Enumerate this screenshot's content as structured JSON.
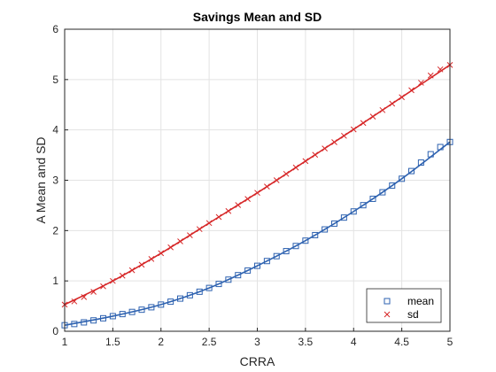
{
  "chart_data": {
    "type": "line",
    "title": "Savings Mean and SD",
    "xlabel": "CRRA",
    "ylabel": "A Mean and SD",
    "xlim": [
      1,
      5
    ],
    "ylim": [
      0,
      6
    ],
    "xticks": [
      1,
      1.5,
      2,
      2.5,
      3,
      3.5,
      4,
      4.5,
      5
    ],
    "yticks": [
      0,
      1,
      2,
      3,
      4,
      5,
      6
    ],
    "grid": true,
    "legend_position": "bottom-right",
    "series": [
      {
        "name": "mean",
        "color": "#2e62b0",
        "marker": "square",
        "x": [
          1.0,
          1.5,
          2.0,
          2.5,
          3.0,
          3.5,
          4.0,
          4.5,
          5.0
        ],
        "y": [
          0.12,
          0.3,
          0.53,
          0.86,
          1.3,
          1.8,
          2.38,
          3.03,
          3.76
        ]
      },
      {
        "name": "sd",
        "color": "#d62728",
        "marker": "x",
        "x": [
          1.0,
          1.5,
          2.0,
          2.5,
          3.0,
          3.5,
          4.0,
          4.5,
          5.0
        ],
        "y": [
          0.53,
          1.0,
          1.55,
          2.15,
          2.75,
          3.38,
          4.01,
          4.65,
          5.29
        ]
      }
    ]
  }
}
